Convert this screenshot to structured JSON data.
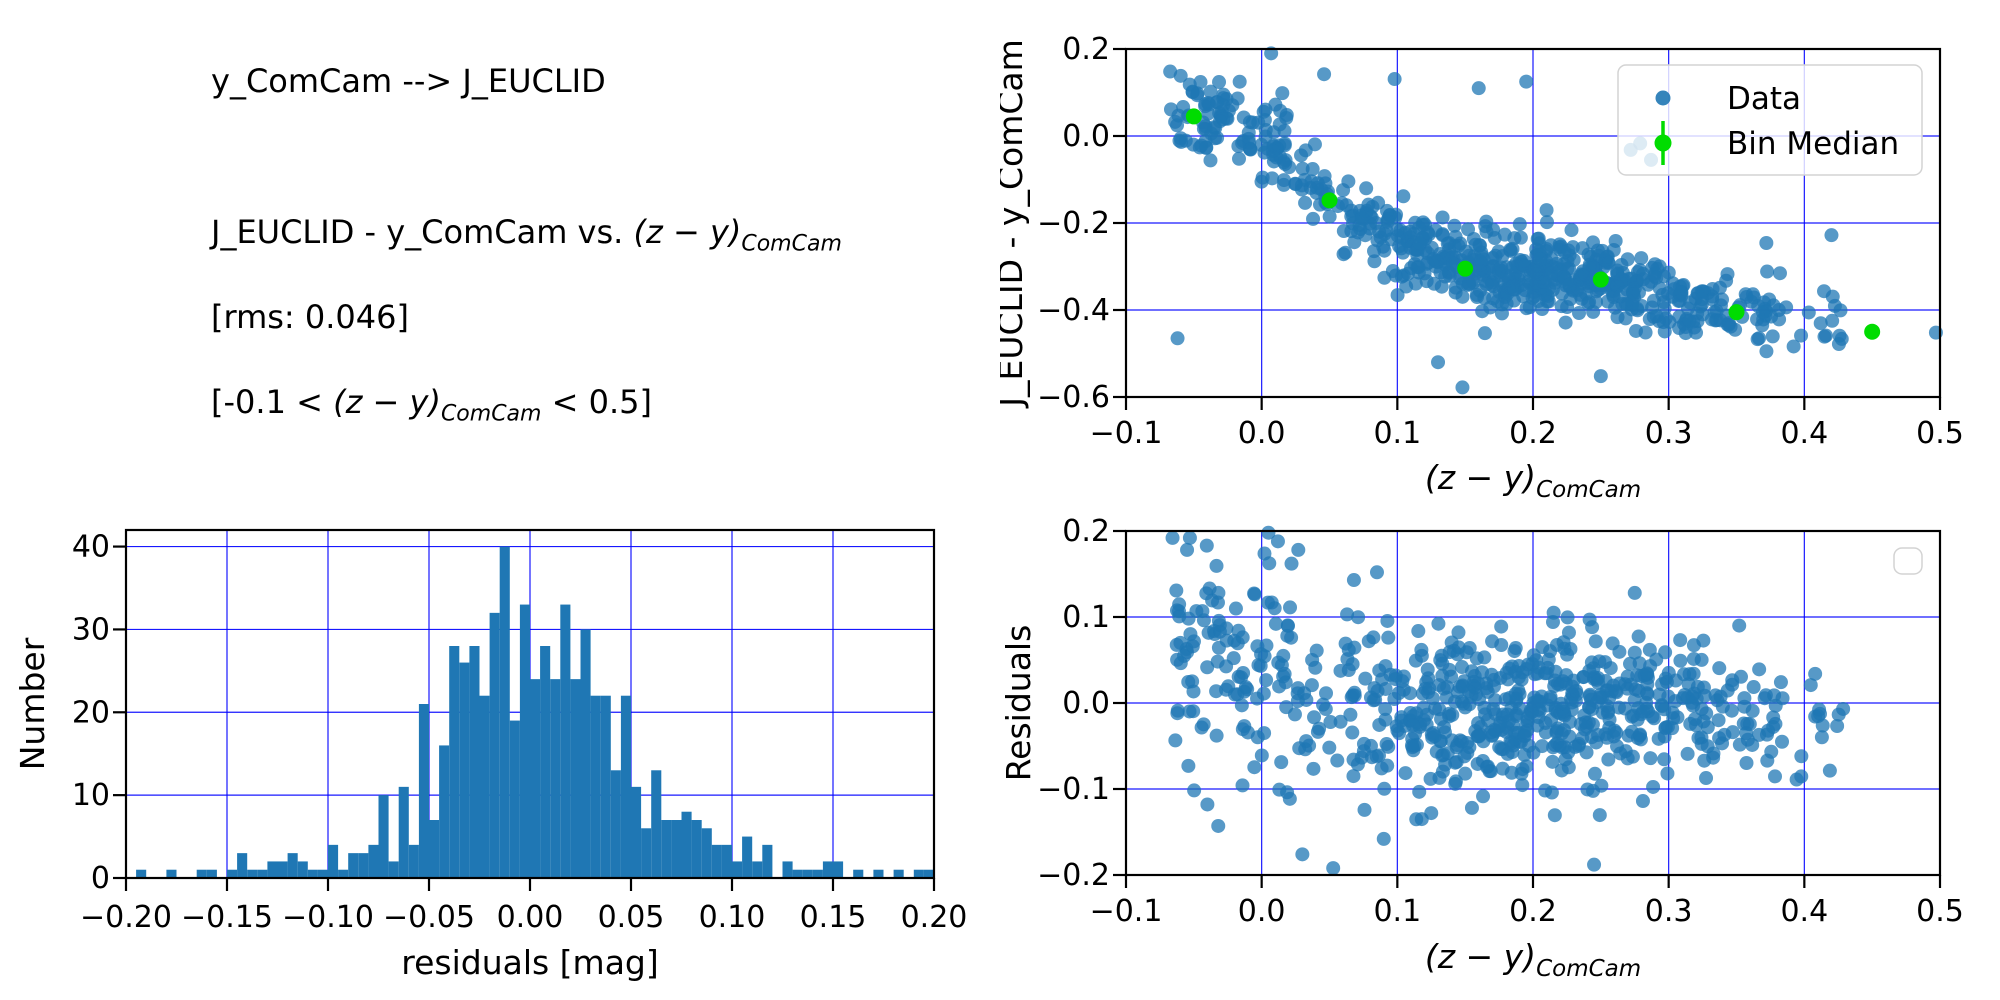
{
  "annotations": {
    "mapping": "y_ComCam --> J_EUCLID",
    "relation_prefix": "J_EUCLID - y_ComCam vs. ",
    "zy_expr": "(z − y)",
    "zy_sub": "ComCam",
    "rms": "[rms: 0.046]",
    "range_prefix": "[-0.1 < ",
    "range_suffix": " < 0.5]"
  },
  "colors": {
    "data_point": "#1f77b4",
    "bin_median": "#00dc00",
    "grid": "#0000ff",
    "axis": "#000000",
    "hist_fill": "#1f77b4",
    "legend_border": "#d3d3d3",
    "legend_bg": "rgba(255,255,255,0.8)"
  },
  "chart_data": [
    {
      "id": "color-mag-scatter",
      "type": "scatter",
      "xlabel_expr": "(z − y)",
      "xlabel_sub": "ComCam",
      "ylabel": "J_EUCLID - y_ComCam",
      "xlim": [
        -0.1,
        0.5
      ],
      "ylim": [
        -0.6,
        0.2
      ],
      "xtick_vals": [
        -0.1,
        0,
        0.1,
        0.2,
        0.3,
        0.4,
        0.5
      ],
      "xtick_labels": [
        "−0.1",
        "0.0",
        "0.1",
        "0.2",
        "0.3",
        "0.4",
        "0.5"
      ],
      "ytick_vals": [
        0.2,
        0,
        -0.2,
        -0.4,
        -0.6
      ],
      "ytick_labels": [
        "0.2",
        "0.0",
        "−0.2",
        "−0.4",
        "−0.6"
      ],
      "grid": true,
      "legend": {
        "entries": [
          "Data",
          "Bin Median"
        ],
        "position": "upper right"
      },
      "bin_medians": {
        "x": [
          -0.05,
          0.05,
          0.15,
          0.25,
          0.35,
          0.45
        ],
        "y": [
          0.045,
          -0.148,
          -0.305,
          -0.33,
          -0.405,
          -0.45
        ],
        "yerr": [
          0.01,
          0.012,
          0.007,
          0.006,
          0.008,
          0.012
        ]
      },
      "scatter_gen": {
        "seed": 7,
        "x_segments": [
          [
            -0.068,
            -0.02,
            58
          ],
          [
            -0.02,
            0.02,
            52
          ],
          [
            0.02,
            0.06,
            30
          ],
          [
            0.06,
            0.1,
            52
          ],
          [
            0.1,
            0.14,
            78
          ],
          [
            0.14,
            0.18,
            92
          ],
          [
            0.18,
            0.22,
            108
          ],
          [
            0.22,
            0.26,
            98
          ],
          [
            0.26,
            0.3,
            72
          ],
          [
            0.3,
            0.34,
            52
          ],
          [
            0.34,
            0.38,
            33
          ],
          [
            0.38,
            0.43,
            18
          ]
        ],
        "trend": [
          [
            -0.068,
            0.055
          ],
          [
            -0.05,
            0.045
          ],
          [
            -0.02,
            0.03
          ],
          [
            0,
            0
          ],
          [
            0.02,
            -0.04
          ],
          [
            0.05,
            -0.148
          ],
          [
            0.08,
            -0.2
          ],
          [
            0.1,
            -0.24
          ],
          [
            0.15,
            -0.305
          ],
          [
            0.2,
            -0.315
          ],
          [
            0.25,
            -0.33
          ],
          [
            0.3,
            -0.375
          ],
          [
            0.35,
            -0.405
          ],
          [
            0.4,
            -0.43
          ],
          [
            0.43,
            -0.44
          ],
          [
            0.45,
            -0.45
          ]
        ],
        "sigma": [
          [
            -0.068,
            0.04
          ],
          [
            0,
            0.05
          ],
          [
            0.05,
            0.05
          ],
          [
            0.1,
            0.05
          ],
          [
            0.2,
            0.042
          ],
          [
            0.3,
            0.04
          ],
          [
            0.43,
            0.035
          ]
        ],
        "y_clip": [
          -0.59,
          0.195
        ]
      },
      "outliers": [
        [
          -0.062,
          -0.465
        ],
        [
          0.13,
          -0.52
        ],
        [
          0.148,
          -0.578
        ],
        [
          0.25,
          -0.552
        ],
        [
          0.42,
          -0.228
        ],
        [
          0.007,
          0.19
        ],
        [
          0.046,
          0.142
        ],
        [
          0.098,
          0.131
        ],
        [
          0.497,
          -0.452
        ],
        [
          0.372,
          -0.246
        ],
        [
          0.279,
          -0.017
        ],
        [
          0.287,
          -0.055
        ],
        [
          0.272,
          -0.032
        ],
        [
          0.195,
          0.125
        ],
        [
          0.16,
          0.11
        ]
      ]
    },
    {
      "id": "residual-histogram",
      "type": "histogram",
      "xlabel": "residuals [mag]",
      "ylabel": "Number",
      "xlim": [
        -0.2,
        0.2
      ],
      "ylim": [
        0,
        42
      ],
      "xtick_vals": [
        -0.2,
        -0.15,
        -0.1,
        -0.05,
        0,
        0.05,
        0.1,
        0.15,
        0.2
      ],
      "xtick_labels": [
        "−0.20",
        "−0.15",
        "−0.10",
        "−0.05",
        "0.00",
        "0.05",
        "0.10",
        "0.15",
        "0.20"
      ],
      "ytick_vals": [
        0,
        10,
        20,
        30,
        40
      ],
      "ytick_labels": [
        "0",
        "10",
        "20",
        "30",
        "40"
      ],
      "grid": true,
      "bin_start": -0.2,
      "bin_width": 0.005,
      "counts": [
        0,
        1,
        0,
        0,
        1,
        0,
        0,
        1,
        1,
        0,
        1,
        3,
        1,
        1,
        2,
        2,
        3,
        2,
        1,
        1,
        4,
        1,
        3,
        3,
        4,
        10,
        2,
        11,
        4,
        21,
        7,
        16,
        28,
        26,
        28,
        22,
        32,
        40,
        19,
        33,
        24,
        28,
        24,
        33,
        24,
        30,
        22,
        22,
        13,
        22,
        11,
        6,
        13,
        7,
        7,
        8,
        7,
        6,
        4,
        4,
        2,
        5,
        2,
        4,
        0,
        2,
        1,
        1,
        1,
        2,
        2,
        0,
        1,
        0,
        1,
        0,
        1,
        0,
        1,
        1
      ]
    },
    {
      "id": "residuals-scatter",
      "type": "scatter",
      "xlabel_expr": "(z − y)",
      "xlabel_sub": "ComCam",
      "ylabel": "Residuals",
      "xlim": [
        -0.1,
        0.5
      ],
      "ylim": [
        -0.2,
        0.2
      ],
      "xtick_vals": [
        -0.1,
        0,
        0.1,
        0.2,
        0.3,
        0.4,
        0.5
      ],
      "xtick_labels": [
        "−0.1",
        "0.0",
        "0.1",
        "0.2",
        "0.3",
        "0.4",
        "0.5"
      ],
      "ytick_vals": [
        -0.2,
        -0.1,
        0,
        0.1,
        0.2
      ],
      "ytick_labels": [
        "−0.2",
        "−0.1",
        "0.0",
        "0.1",
        "0.2"
      ],
      "grid": true,
      "legend": {
        "entries": [],
        "position": "upper right"
      },
      "scatter_gen": {
        "seed": 13,
        "x_segments": [
          [
            -0.068,
            -0.02,
            58
          ],
          [
            -0.02,
            0.02,
            52
          ],
          [
            0.02,
            0.06,
            30
          ],
          [
            0.06,
            0.1,
            52
          ],
          [
            0.1,
            0.14,
            78
          ],
          [
            0.14,
            0.18,
            92
          ],
          [
            0.18,
            0.22,
            108
          ],
          [
            0.22,
            0.26,
            98
          ],
          [
            0.26,
            0.3,
            72
          ],
          [
            0.3,
            0.34,
            52
          ],
          [
            0.34,
            0.38,
            33
          ],
          [
            0.38,
            0.43,
            18
          ]
        ],
        "mean": [
          [
            -0.068,
            0.045
          ],
          [
            0,
            0.035
          ],
          [
            0.04,
            0.01
          ],
          [
            0.1,
            -0.01
          ],
          [
            0.2,
            -0.008
          ],
          [
            0.3,
            -0.002
          ],
          [
            0.43,
            -0.015
          ]
        ],
        "sigma": [
          [
            -0.068,
            0.065
          ],
          [
            0,
            0.07
          ],
          [
            0.05,
            0.055
          ],
          [
            0.1,
            0.048
          ],
          [
            0.2,
            0.04
          ],
          [
            0.3,
            0.042
          ],
          [
            0.43,
            0.028
          ]
        ],
        "y_clip": [
          -0.192,
          0.192
        ]
      },
      "outliers": [
        [
          0.005,
          0.198
        ],
        [
          0.027,
          0.178
        ],
        [
          -0.055,
          0.178
        ],
        [
          0.012,
          0.188
        ],
        [
          0.085,
          0.152
        ],
        [
          0.245,
          -0.188
        ],
        [
          0.03,
          -0.176
        ],
        [
          0.09,
          -0.158
        ],
        [
          -0.032,
          -0.143
        ],
        [
          0.118,
          -0.135
        ],
        [
          0.125,
          -0.128
        ],
        [
          0.275,
          0.128
        ],
        [
          0.352,
          0.09
        ],
        [
          0.022,
          0.162
        ],
        [
          0.068,
          0.143
        ],
        [
          -0.04,
          -0.118
        ],
        [
          0.155,
          -0.122
        ]
      ]
    }
  ]
}
